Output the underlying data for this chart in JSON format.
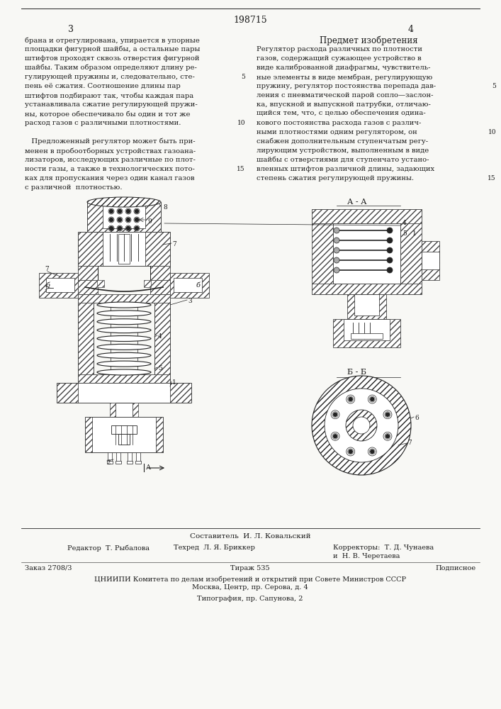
{
  "patent_number": "198715",
  "page_left": "3",
  "page_right": "4",
  "subject_header": "Предмет изобретения",
  "left_text": [
    "брана и отрегулирована, упирается в упорные",
    "площадки фигурной шайбы, а остальные пары",
    "штифтов проходят сквозь отверстия фигурной",
    "шайбы. Таким образом определяют длину ре-",
    "гулирующей пружины и, следовательно, сте-",
    "пень её сжатия. Соотношение длины пар",
    "штифтов подбирают так, чтобы каждая пара",
    "устанавливала сжатие регулирующей пружи-",
    "ны, которое обеспечивало бы один и тот же",
    "расход газов с различными плотностями.",
    "",
    "   Предложенный регулятор может быть при-",
    "менен в пробоотборных устройствах газоана-",
    "лизаторов, исследующих различные по плот-",
    "ности газы, а также в технологических пото-",
    "ках для пропускания через один канал газов",
    "с различной  плотностью."
  ],
  "right_text": [
    "Регулятор расхода различных по плотности",
    "газов, содержащий сужающее устройство в",
    "виде калиброванной диафрагмы, чувствитель-",
    "ные элементы в виде мембран, регулирующую",
    "пружину, регулятор постоянства перепада дав-",
    "ления с пневматической парой сопло—заслон-",
    "ка, впускной и выпускной патрубки, отличаю-",
    "щийся тем, что, с целью обеспечения одина-",
    "кового постоянства расхода газов с различ-",
    "ными плотностями одним регулятором, он",
    "снабжен дополнительным ступенчатым регу-",
    "лирующим устройством, выполненным в виде",
    "шайбы с отверстиями для ступенчато устано-",
    "вленных штифтов различной длины, задающих",
    "степень сжатия регулирующей пружины."
  ],
  "bottom_section": {
    "composer": "Составитель  И. Л. Ковальский",
    "editor": "Редактор  Т. Рыбалова",
    "tech": "Техред  Л. Я. Бриккер",
    "correctors": "Корректоры:  Т. Д. Чунаева",
    "corrector2": "и  Н. В. Черетаева",
    "order": "Заказ 2708/3",
    "circulation": "Тираж 535",
    "podpisnoe": "Подписное",
    "org_line": "ЦНИИПИ Комитета по делам изобретений и открытий при Совете Министров СССР",
    "org_addr": "Москва, Центр, пр. Серова, д. 4",
    "typography": "Типография, пр. Сапунова, 2"
  },
  "bg_color": "#f8f8f5",
  "text_color": "#1a1a1a",
  "hatch_color": "#444444",
  "line_color": "#222222"
}
